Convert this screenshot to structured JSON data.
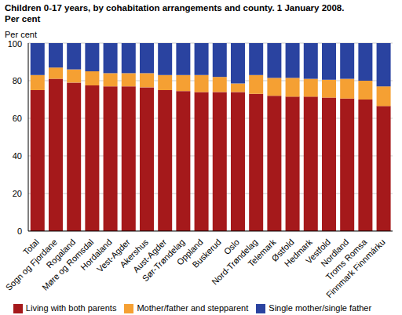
{
  "chart_data": {
    "type": "bar",
    "stacked": true,
    "title": "Children 0-17 years, by cohabitation arrangements and county. 1 January 2008.",
    "subtitle": "Per cent",
    "y_label": "Per cent",
    "categories": [
      "Total",
      "Sogn og Fjordane",
      "Rogaland",
      "Møre og Romsdal",
      "Hordaland",
      "Vest-Agder",
      "Akershus",
      "Aust-Agder",
      "Sør-Trøndelag",
      "Oppland",
      "Buskerud",
      "Oslo",
      "Nord-Trøndelag",
      "Telemark",
      "Østfold",
      "Hedmark",
      "Vestfold",
      "Nordland",
      "Troms Romsa",
      "Finnmark Finnmárku"
    ],
    "series": [
      {
        "name": "Living with both parents",
        "color": "#a5191b",
        "values": [
          75,
          81,
          79,
          77.5,
          77,
          77,
          76.5,
          75,
          74.5,
          74,
          74,
          74,
          73,
          72,
          71.5,
          71.5,
          71,
          70.5,
          70,
          66.5
        ]
      },
      {
        "name": "Mother/father and stepparent",
        "color": "#f5a033",
        "values": [
          8,
          6,
          7,
          7.5,
          7,
          7,
          7.5,
          8,
          8.5,
          9,
          8,
          4.5,
          10,
          9.5,
          10,
          9.5,
          9.5,
          10.5,
          10,
          10.5
        ]
      },
      {
        "name": "Single mother/single father",
        "color": "#2a43a0",
        "values": [
          17,
          13,
          14,
          15,
          16,
          16,
          16,
          17,
          17,
          17,
          18,
          21.5,
          17,
          18.5,
          18.5,
          19,
          19.5,
          19,
          20,
          23
        ]
      }
    ],
    "ylim": [
      0,
      100
    ],
    "yticks": [
      0,
      20,
      40,
      60,
      80,
      100
    ],
    "grid": true,
    "legend": "bottom"
  }
}
